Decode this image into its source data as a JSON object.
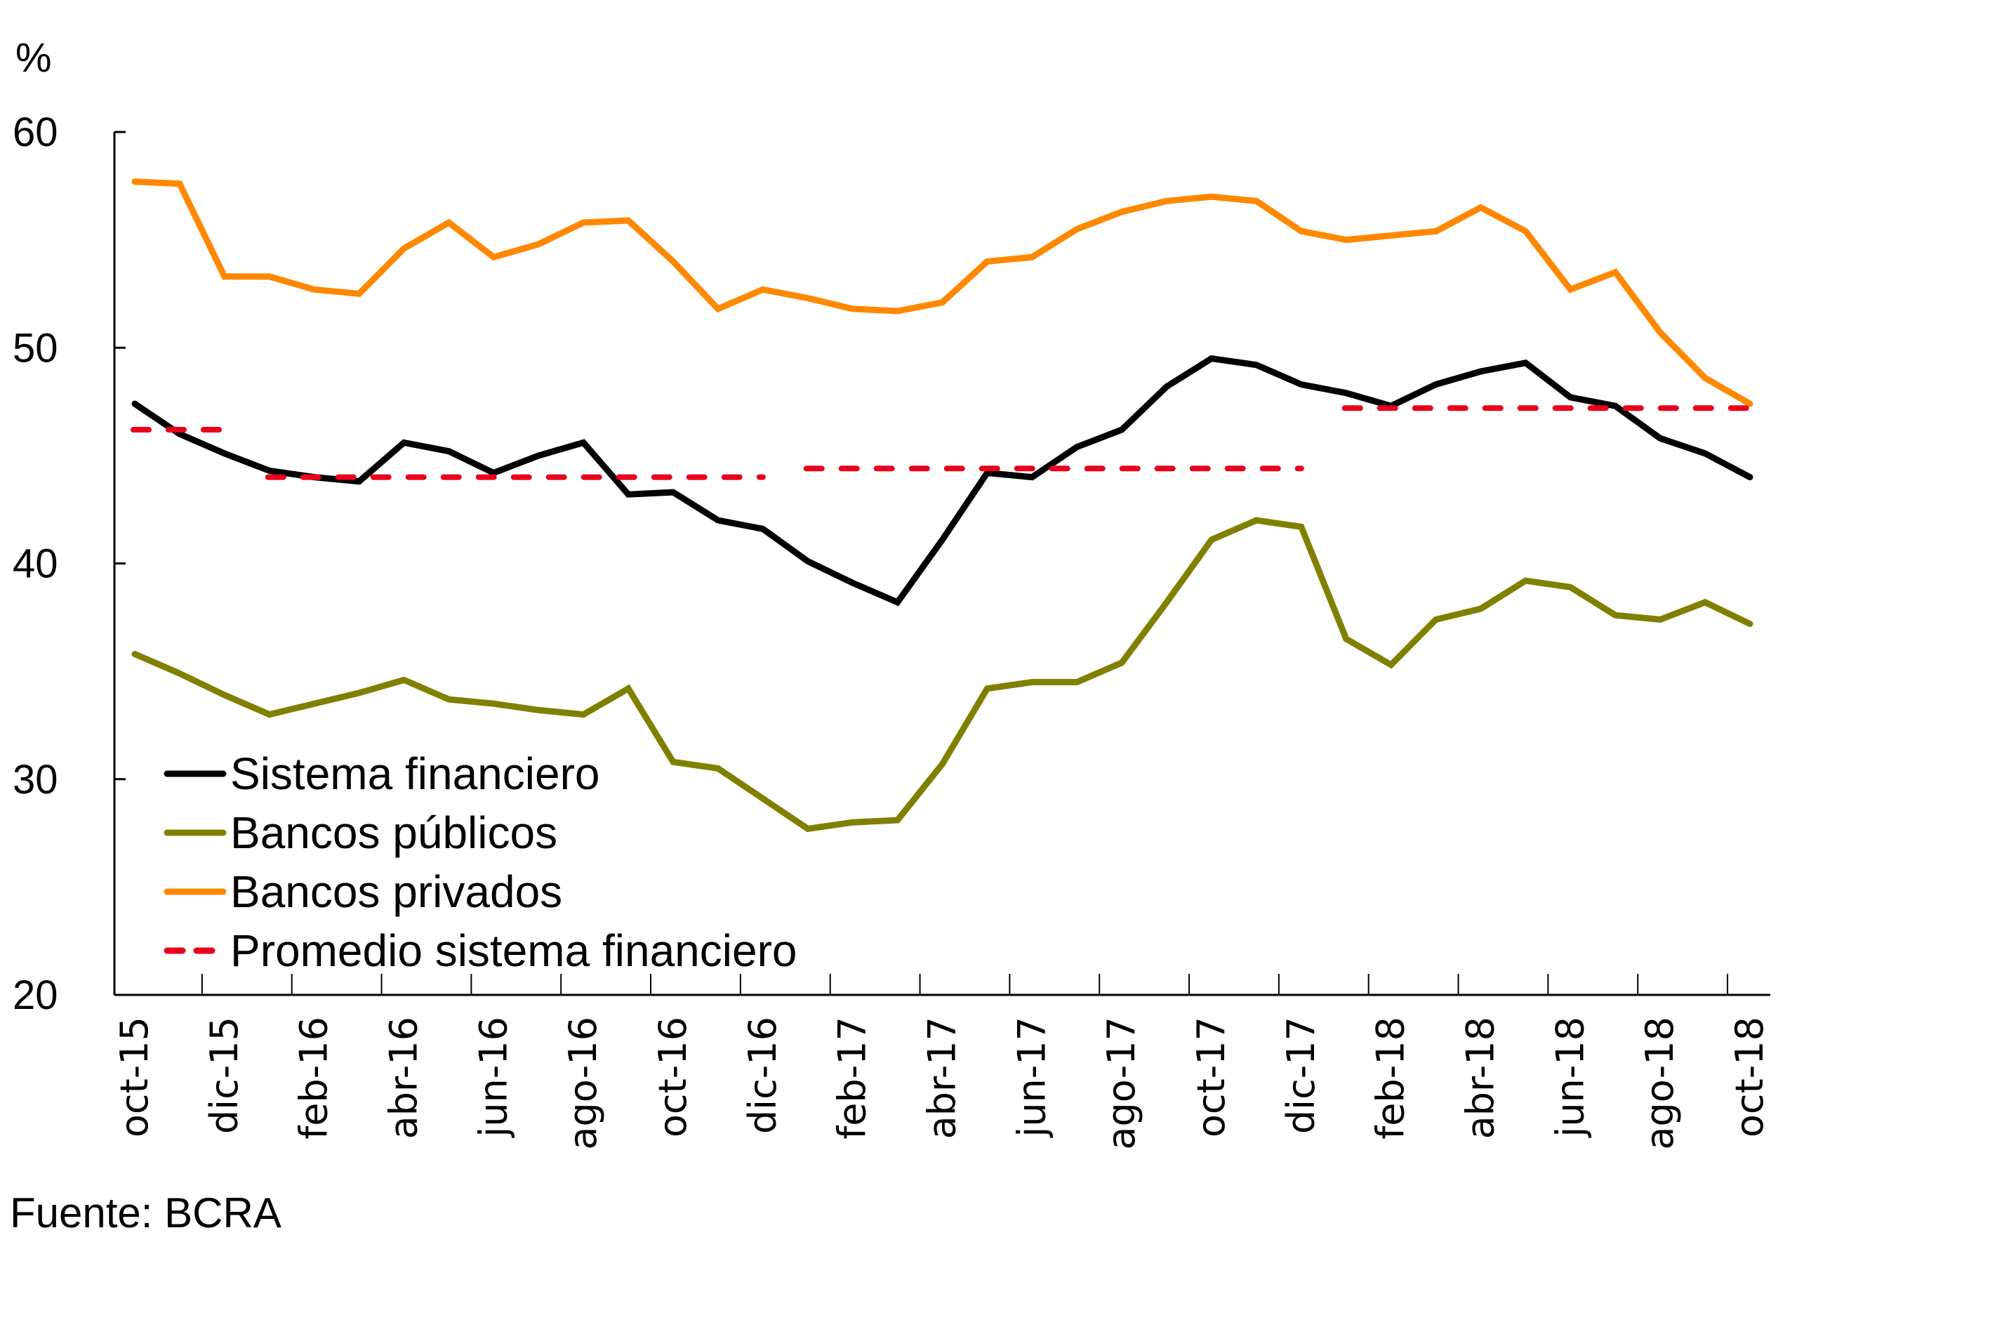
{
  "chart_data": {
    "type": "line",
    "title": "",
    "unit_label": "%",
    "xlabel": "",
    "ylabel": "%",
    "ylim": [
      20,
      60
    ],
    "yticks": [
      20,
      30,
      40,
      50,
      60
    ],
    "grid": false,
    "legend_position": "bottom-left",
    "source": "Fuente: BCRA",
    "x": [
      "oct-15",
      "nov-15",
      "dic-15",
      "ene-16",
      "feb-16",
      "mar-16",
      "abr-16",
      "may-16",
      "jun-16",
      "jul-16",
      "ago-16",
      "sep-16",
      "oct-16",
      "nov-16",
      "dic-16",
      "ene-17",
      "feb-17",
      "mar-17",
      "abr-17",
      "may-17",
      "jun-17",
      "jul-17",
      "ago-17",
      "sep-17",
      "oct-17",
      "nov-17",
      "dic-17",
      "ene-18",
      "feb-18",
      "mar-18",
      "abr-18",
      "may-18",
      "jun-18",
      "jul-18",
      "ago-18",
      "sep-18",
      "oct-18"
    ],
    "xtick_labels": [
      "oct-15",
      "dic-15",
      "feb-16",
      "abr-16",
      "jun-16",
      "ago-16",
      "oct-16",
      "dic-16",
      "feb-17",
      "abr-17",
      "jun-17",
      "ago-17",
      "oct-17",
      "dic-17",
      "feb-18",
      "abr-18",
      "jun-18",
      "ago-18",
      "oct-18"
    ],
    "series": [
      {
        "name": "Sistema financiero",
        "color": "#000000",
        "style": "solid",
        "values": [
          47.4,
          46.0,
          45.1,
          44.3,
          44.0,
          43.8,
          45.6,
          45.2,
          44.2,
          45.0,
          45.6,
          43.2,
          43.3,
          42.0,
          41.6,
          40.1,
          39.1,
          38.2,
          41.1,
          44.2,
          44.0,
          45.4,
          46.2,
          48.2,
          49.5,
          49.2,
          48.3,
          47.9,
          47.3,
          48.3,
          48.9,
          49.3,
          47.7,
          47.3,
          45.8,
          45.1,
          44.0
        ]
      },
      {
        "name": "Bancos públicos",
        "color": "#808000",
        "style": "solid",
        "values": [
          35.8,
          34.9,
          33.9,
          33.0,
          33.5,
          34.0,
          34.6,
          33.7,
          33.5,
          33.2,
          33.0,
          34.2,
          30.8,
          30.5,
          29.1,
          27.7,
          28.0,
          28.1,
          30.7,
          34.2,
          34.5,
          34.5,
          35.4,
          38.2,
          41.1,
          42.0,
          41.7,
          36.5,
          35.3,
          37.4,
          37.9,
          39.2,
          38.9,
          37.6,
          37.4,
          38.2,
          37.2
        ]
      },
      {
        "name": "Bancos privados",
        "color": "#FF8800",
        "style": "solid",
        "values": [
          57.7,
          57.6,
          53.3,
          53.3,
          52.7,
          52.5,
          54.6,
          55.8,
          54.2,
          54.8,
          55.8,
          55.9,
          54.0,
          51.8,
          52.7,
          52.3,
          51.8,
          51.7,
          52.1,
          54.0,
          54.2,
          55.5,
          56.3,
          56.8,
          57.0,
          56.8,
          55.4,
          55.0,
          55.2,
          55.4,
          56.5,
          55.4,
          52.7,
          53.5,
          50.7,
          48.6,
          47.4
        ]
      },
      {
        "name": "Promedio sistema financiero",
        "color": "#E8001C",
        "style": "dashed",
        "segments": [
          {
            "from": "oct-15",
            "to": "dic-15",
            "value": 46.2
          },
          {
            "from": "ene-16",
            "to": "dic-16",
            "value": 44.0
          },
          {
            "from": "ene-17",
            "to": "dic-17",
            "value": 44.4
          },
          {
            "from": "ene-18",
            "to": "oct-18",
            "value": 47.2
          }
        ]
      }
    ]
  }
}
